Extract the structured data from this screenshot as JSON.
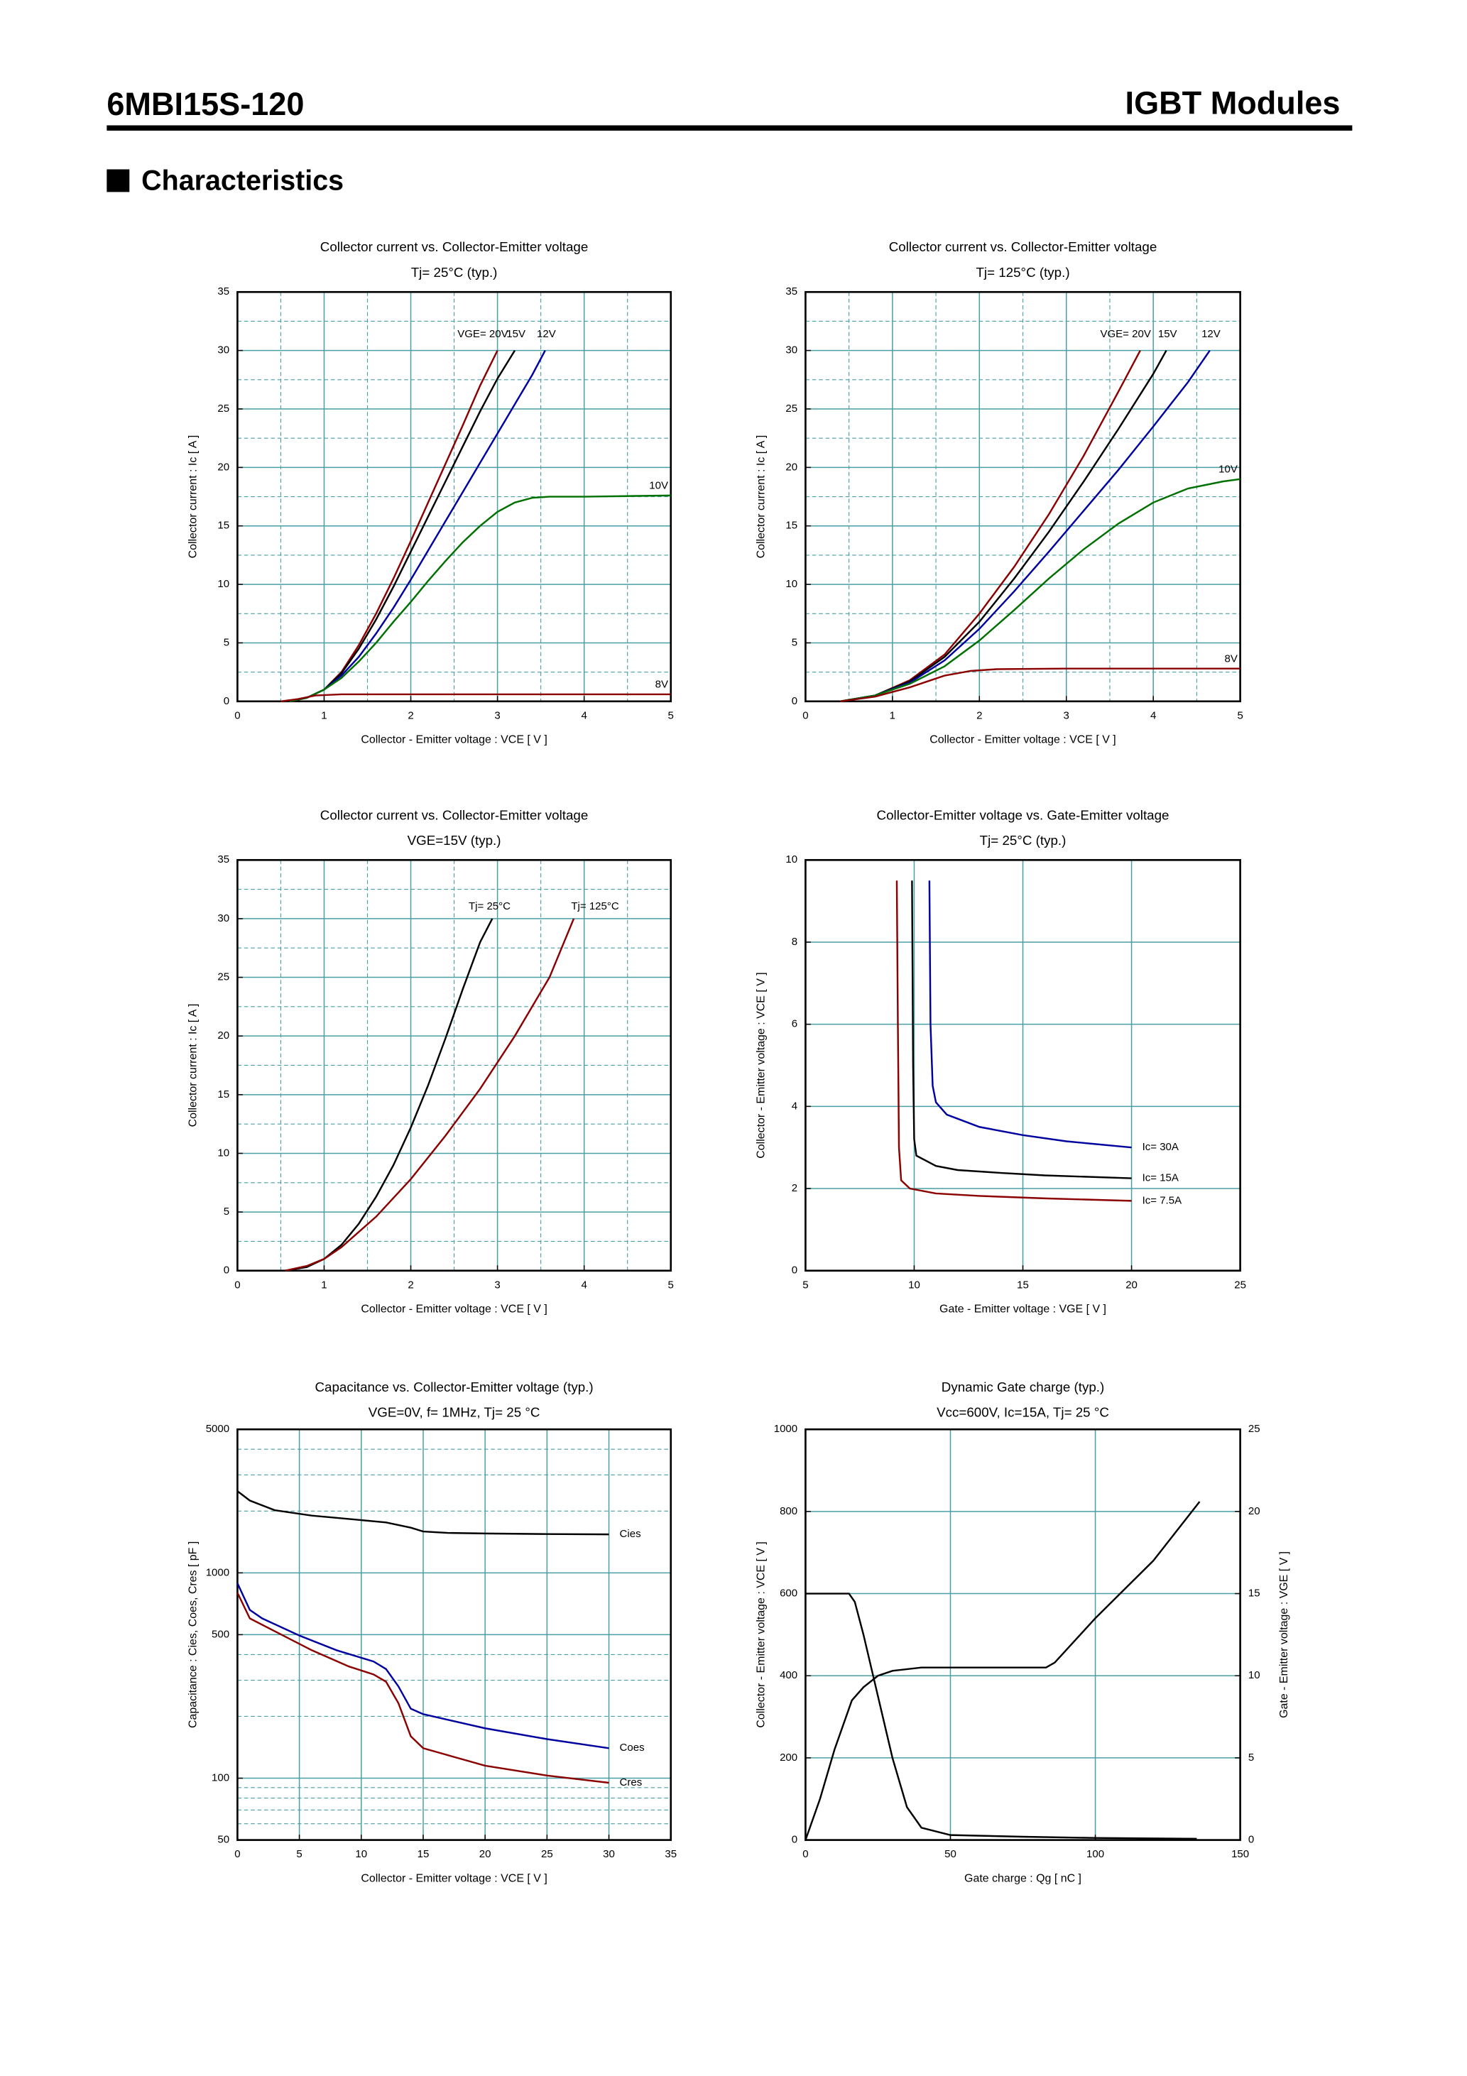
{
  "header": {
    "part": "6MBI15S-120",
    "category": "IGBT Modules",
    "section": "Characteristics"
  },
  "chart_data": [
    {
      "type": "line",
      "title": "Collector current  vs.  Collector-Emitter voltage",
      "subtitle": "Tj= 25°C  (typ.)",
      "xlabel": "Collector - Emitter voltage  :  VCE  [ V ]",
      "ylabel": "Collector current  :  Ic  [ A ]",
      "xlim": [
        0,
        5
      ],
      "ylim": [
        0,
        35
      ],
      "xticks": [
        0,
        1,
        2,
        3,
        4,
        5
      ],
      "yticks": [
        0,
        5,
        10,
        15,
        20,
        25,
        30,
        35
      ],
      "xminor": [
        0.5,
        1.5,
        2.5,
        3.5,
        4.5
      ],
      "yminor": [
        2.5,
        7.5,
        12.5,
        17.5,
        22.5,
        27.5,
        32.5
      ],
      "grid": true,
      "series": [
        {
          "name": "VGE= 20V",
          "color": "#8b0000",
          "x": [
            0.6,
            0.8,
            1.0,
            1.2,
            1.4,
            1.6,
            1.8,
            2.0,
            2.2,
            2.4,
            2.6,
            2.8,
            3.0
          ],
          "values": [
            0,
            0.3,
            1,
            2.5,
            4.8,
            7.5,
            10.5,
            13.7,
            17,
            20.3,
            23.6,
            27,
            30
          ]
        },
        {
          "name": "15V",
          "color": "#000000",
          "x": [
            0.6,
            0.8,
            1.0,
            1.2,
            1.4,
            1.6,
            1.8,
            2.0,
            2.2,
            2.4,
            2.6,
            2.8,
            3.0,
            3.2
          ],
          "values": [
            0,
            0.3,
            1,
            2.4,
            4.5,
            7,
            9.8,
            12.8,
            15.8,
            18.8,
            21.8,
            24.8,
            27.6,
            30
          ]
        },
        {
          "name": "12V",
          "color": "#0000a0",
          "x": [
            0.6,
            0.8,
            1.0,
            1.2,
            1.4,
            1.6,
            1.8,
            2.0,
            2.2,
            2.4,
            2.6,
            2.8,
            3.0,
            3.2,
            3.4,
            3.55
          ],
          "values": [
            0,
            0.3,
            1,
            2.2,
            3.8,
            5.8,
            8,
            10.4,
            12.9,
            15.4,
            17.9,
            20.4,
            22.9,
            25.4,
            27.9,
            30
          ]
        },
        {
          "name": "10V",
          "color": "#007000",
          "x": [
            0.6,
            0.8,
            1.0,
            1.2,
            1.4,
            1.6,
            1.8,
            2.0,
            2.2,
            2.4,
            2.6,
            2.8,
            3.0,
            3.2,
            3.4,
            3.6,
            4.0,
            5.0
          ],
          "values": [
            0,
            0.3,
            1,
            2,
            3.4,
            5,
            6.8,
            8.5,
            10.3,
            12,
            13.6,
            15,
            16.2,
            17,
            17.4,
            17.5,
            17.5,
            17.6
          ]
        },
        {
          "name": "8V",
          "color": "#8b0000",
          "x": [
            0.5,
            0.7,
            0.9,
            1.2,
            5.0
          ],
          "values": [
            0,
            0.2,
            0.5,
            0.6,
            0.6
          ]
        }
      ]
    },
    {
      "type": "line",
      "title": "Collector current  vs.  Collector-Emitter voltage",
      "subtitle": "Tj= 125°C  (typ.)",
      "xlabel": "Collector - Emitter voltage  :  VCE  [ V ]",
      "ylabel": "Collector current  :  Ic  [ A ]",
      "xlim": [
        0,
        5
      ],
      "ylim": [
        0,
        35
      ],
      "xticks": [
        0,
        1,
        2,
        3,
        4,
        5
      ],
      "yticks": [
        0,
        5,
        10,
        15,
        20,
        25,
        30,
        35
      ],
      "xminor": [
        0.5,
        1.5,
        2.5,
        3.5,
        4.5
      ],
      "yminor": [
        2.5,
        7.5,
        12.5,
        17.5,
        22.5,
        27.5,
        32.5
      ],
      "grid": true,
      "series": [
        {
          "name": "VGE= 20V",
          "color": "#8b0000",
          "x": [
            0.4,
            0.8,
            1.2,
            1.6,
            2.0,
            2.4,
            2.8,
            3.2,
            3.6,
            3.85
          ],
          "values": [
            0,
            0.5,
            1.8,
            4,
            7.5,
            11.5,
            16,
            21,
            26.5,
            30
          ]
        },
        {
          "name": "15V",
          "color": "#000000",
          "x": [
            0.4,
            0.8,
            1.2,
            1.6,
            2.0,
            2.4,
            2.8,
            3.2,
            3.6,
            4.0,
            4.15
          ],
          "values": [
            0,
            0.5,
            1.7,
            3.8,
            6.8,
            10.5,
            14.5,
            18.8,
            23.3,
            28,
            30
          ]
        },
        {
          "name": "12V",
          "color": "#0000a0",
          "x": [
            0.4,
            0.8,
            1.2,
            1.6,
            2.0,
            2.4,
            2.8,
            3.2,
            3.6,
            4.0,
            4.4,
            4.65
          ],
          "values": [
            0,
            0.5,
            1.6,
            3.5,
            6.2,
            9.4,
            12.8,
            16.3,
            19.8,
            23.5,
            27.3,
            30
          ]
        },
        {
          "name": "10V",
          "color": "#007000",
          "x": [
            0.4,
            0.8,
            1.2,
            1.6,
            2.0,
            2.4,
            2.8,
            3.2,
            3.6,
            4.0,
            4.4,
            4.8,
            5.0
          ],
          "values": [
            0,
            0.5,
            1.5,
            3,
            5.2,
            7.8,
            10.5,
            13,
            15.2,
            17,
            18.2,
            18.8,
            19
          ]
        },
        {
          "name": "8V",
          "color": "#8b0000",
          "x": [
            0.4,
            0.8,
            1.2,
            1.6,
            1.9,
            2.2,
            3.0,
            5.0
          ],
          "values": [
            0,
            0.4,
            1.2,
            2.2,
            2.6,
            2.75,
            2.8,
            2.8
          ]
        }
      ]
    },
    {
      "type": "line",
      "title": "Collector current  vs.  Collector-Emitter voltage",
      "subtitle": "VGE=15V  (typ.)",
      "xlabel": "Collector - Emitter voltage  :  VCE  [ V ]",
      "ylabel": "Collector current  :  Ic  [ A ]",
      "xlim": [
        0,
        5
      ],
      "ylim": [
        0,
        35
      ],
      "xticks": [
        0,
        1,
        2,
        3,
        4,
        5
      ],
      "yticks": [
        0,
        5,
        10,
        15,
        20,
        25,
        30,
        35
      ],
      "xminor": [
        0.5,
        1.5,
        2.5,
        3.5,
        4.5
      ],
      "yminor": [
        2.5,
        7.5,
        12.5,
        17.5,
        22.5,
        27.5,
        32.5
      ],
      "grid": true,
      "series": [
        {
          "name": "Tj= 25°C",
          "color": "#000000",
          "x": [
            0.55,
            0.8,
            1.0,
            1.2,
            1.4,
            1.6,
            1.8,
            2.0,
            2.2,
            2.4,
            2.6,
            2.8,
            2.94
          ],
          "values": [
            0,
            0.3,
            1,
            2.2,
            4,
            6.3,
            9,
            12.2,
            15.8,
            19.8,
            24,
            28,
            30
          ]
        },
        {
          "name": "Tj= 125°C",
          "color": "#8b0000",
          "x": [
            0.55,
            0.8,
            1.0,
            1.2,
            1.6,
            2.0,
            2.4,
            2.8,
            3.2,
            3.6,
            3.88
          ],
          "values": [
            0,
            0.4,
            1,
            2,
            4.6,
            7.8,
            11.5,
            15.5,
            20,
            25,
            30
          ]
        }
      ]
    },
    {
      "type": "line",
      "title": "Collector-Emitter voltage  vs.  Gate-Emitter voltage",
      "subtitle": "Tj= 25°C  (typ.)",
      "xlabel": "Gate - Emitter voltage  :  VGE  [ V ]",
      "ylabel": "Collector - Emitter voltage  :  VCE  [ V ]",
      "xlim": [
        5,
        25
      ],
      "ylim": [
        0,
        10
      ],
      "xticks": [
        5,
        10,
        15,
        20,
        25
      ],
      "yticks": [
        0,
        2,
        4,
        6,
        8,
        10
      ],
      "grid": true,
      "series": [
        {
          "name": "Ic= 30A",
          "color": "#0000a0",
          "x": [
            10.7,
            10.75,
            10.85,
            11.0,
            11.5,
            13,
            15,
            17,
            20
          ],
          "values": [
            9.5,
            6,
            4.5,
            4.1,
            3.8,
            3.5,
            3.3,
            3.15,
            3.0
          ]
        },
        {
          "name": "Ic= 15A",
          "color": "#000000",
          "x": [
            9.9,
            9.95,
            10.0,
            10.1,
            11,
            12,
            14,
            16,
            20
          ],
          "values": [
            9.5,
            5,
            3.2,
            2.8,
            2.55,
            2.45,
            2.38,
            2.32,
            2.25
          ]
        },
        {
          "name": "Ic= 7.5A",
          "color": "#8b0000",
          "x": [
            9.2,
            9.25,
            9.3,
            9.4,
            9.8,
            11,
            13,
            16,
            20
          ],
          "values": [
            9.5,
            6,
            3,
            2.2,
            2.0,
            1.88,
            1.82,
            1.76,
            1.7
          ]
        }
      ]
    },
    {
      "type": "line",
      "title": "Capacitance  vs.  Collector-Emitter voltage  (typ.)",
      "subtitle": "VGE=0V,  f= 1MHz,  Tj= 25 °C",
      "xlabel": "Collector - Emitter voltage  :  VCE  [ V ]",
      "ylabel": "Capacitance  :  Cies, Coes, Cres  [ pF ]",
      "xlim": [
        0,
        35
      ],
      "ylim": [
        50,
        5000
      ],
      "ylog": true,
      "xticks": [
        0,
        5,
        10,
        15,
        20,
        25,
        30,
        35
      ],
      "yticks": [
        50,
        100,
        500,
        1000,
        5000
      ],
      "yminor": [
        60,
        70,
        80,
        90,
        200,
        300,
        400,
        2000,
        3000,
        4000
      ],
      "grid": true,
      "series": [
        {
          "name": "Cies",
          "color": "#000000",
          "x": [
            0,
            1,
            3,
            6,
            9,
            12,
            14,
            15,
            17,
            20,
            25,
            30
          ],
          "values": [
            2500,
            2250,
            2020,
            1900,
            1830,
            1760,
            1660,
            1590,
            1565,
            1555,
            1545,
            1540
          ]
        },
        {
          "name": "Coes",
          "color": "#0000a0",
          "x": [
            0,
            1,
            2,
            5,
            8,
            11,
            12,
            13,
            14,
            15,
            20,
            25,
            30
          ],
          "values": [
            890,
            660,
            600,
            495,
            420,
            370,
            340,
            280,
            218,
            205,
            175,
            155,
            140
          ]
        },
        {
          "name": "Cres",
          "color": "#8b0000",
          "x": [
            0,
            1,
            3,
            6,
            9,
            11,
            12,
            13,
            14,
            15,
            20,
            25,
            30
          ],
          "values": [
            800,
            600,
            520,
            420,
            350,
            320,
            295,
            232,
            160,
            140,
            115,
            103,
            95
          ]
        }
      ]
    },
    {
      "type": "line",
      "title": "Dynamic Gate charge  (typ.)",
      "subtitle": "Vcc=600V, Ic=15A, Tj= 25 °C",
      "xlabel": "Gate charge  :  Qg  [ nC ]",
      "ylabel": "Collector - Emitter voltage  :  VCE  [ V ]",
      "y2label": "Gate - Emitter voltage  :  VGE  [ V ]",
      "xlim": [
        0,
        150
      ],
      "ylim": [
        0,
        1000
      ],
      "y2lim": [
        0,
        25
      ],
      "xticks": [
        0,
        50,
        100,
        150
      ],
      "yticks": [
        0,
        200,
        400,
        600,
        800,
        1000
      ],
      "y2ticks": [
        0,
        5,
        10,
        15,
        20,
        25
      ],
      "grid": true,
      "series": [
        {
          "color": "#000000",
          "x": [
            0,
            15,
            17,
            20,
            25,
            30,
            35,
            40,
            50,
            75,
            100,
            135
          ],
          "values": [
            600,
            600,
            580,
            500,
            350,
            200,
            80,
            30,
            12,
            8,
            5,
            3
          ]
        },
        {
          "color": "#000000",
          "axis": "y2",
          "x": [
            0,
            5,
            10,
            16,
            20,
            25,
            30,
            40,
            60,
            83,
            86,
            100,
            120,
            136
          ],
          "values": [
            0,
            2.5,
            5.5,
            8.5,
            9.3,
            10,
            10.3,
            10.5,
            10.5,
            10.5,
            10.8,
            13.5,
            17,
            20.6
          ]
        }
      ]
    }
  ]
}
